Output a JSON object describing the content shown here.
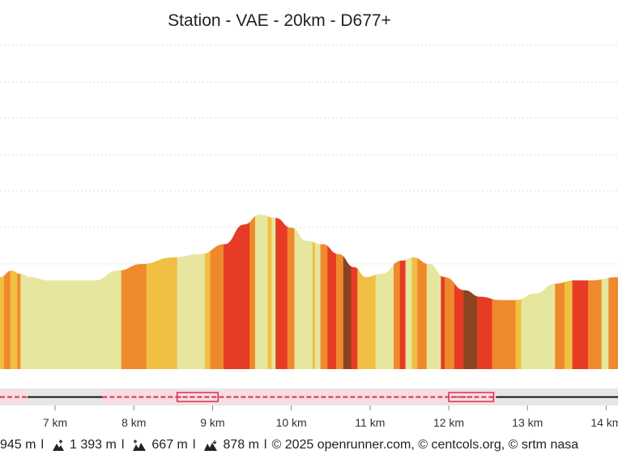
{
  "title": "Station - VAE - 20km - D677+",
  "footer": {
    "distance": "945 m",
    "ascent": "1 393 m",
    "descent_up": "667 m",
    "descent_down": "878 m",
    "credits": "© 2025 openrunner.com, © centcols.org, © srtm nasa"
  },
  "chart_data": {
    "type": "area",
    "title": "Station - VAE - 20km - D677+",
    "xlabel": "",
    "ylabel": "",
    "xlim": [
      6.3,
      14.15
    ],
    "xticks": [
      7,
      8,
      9,
      10,
      11,
      12,
      13,
      14
    ],
    "xtick_labels": [
      "7 km",
      "8 km",
      "9 km",
      "10 km",
      "11 km",
      "12 km",
      "13 km",
      "14 km"
    ],
    "grid": true,
    "profile": [
      [
        6.3,
        0.28
      ],
      [
        6.45,
        0.3
      ],
      [
        6.55,
        0.29
      ],
      [
        6.7,
        0.28
      ],
      [
        6.9,
        0.27
      ],
      [
        7.2,
        0.27
      ],
      [
        7.5,
        0.27
      ],
      [
        7.8,
        0.3
      ],
      [
        8.1,
        0.32
      ],
      [
        8.5,
        0.34
      ],
      [
        8.85,
        0.35
      ],
      [
        9.15,
        0.38
      ],
      [
        9.4,
        0.44
      ],
      [
        9.6,
        0.47
      ],
      [
        9.8,
        0.46
      ],
      [
        10.0,
        0.43
      ],
      [
        10.2,
        0.39
      ],
      [
        10.4,
        0.38
      ],
      [
        10.6,
        0.35
      ],
      [
        10.8,
        0.31
      ],
      [
        10.95,
        0.28
      ],
      [
        11.15,
        0.29
      ],
      [
        11.4,
        0.33
      ],
      [
        11.55,
        0.34
      ],
      [
        11.75,
        0.32
      ],
      [
        11.95,
        0.28
      ],
      [
        12.2,
        0.24
      ],
      [
        12.4,
        0.22
      ],
      [
        12.65,
        0.21
      ],
      [
        12.85,
        0.21
      ],
      [
        13.1,
        0.23
      ],
      [
        13.35,
        0.26
      ],
      [
        13.6,
        0.27
      ],
      [
        13.8,
        0.27
      ],
      [
        14.15,
        0.28
      ]
    ],
    "gradient_colors": [
      "#e6e69e",
      "#f0c042",
      "#ef8a2c",
      "#e63b25",
      "#8b4421"
    ],
    "segments": [
      [
        6.3,
        6.35,
        1
      ],
      [
        6.35,
        6.43,
        2
      ],
      [
        6.43,
        6.52,
        1
      ],
      [
        6.52,
        6.56,
        2
      ],
      [
        6.56,
        6.62,
        0
      ],
      [
        6.62,
        7.84,
        0
      ],
      [
        7.84,
        8.16,
        2
      ],
      [
        8.16,
        8.55,
        1
      ],
      [
        8.55,
        8.9,
        0
      ],
      [
        8.9,
        8.97,
        1
      ],
      [
        8.97,
        9.14,
        2
      ],
      [
        9.14,
        9.47,
        3
      ],
      [
        9.47,
        9.54,
        2
      ],
      [
        9.54,
        9.7,
        0
      ],
      [
        9.7,
        9.75,
        1
      ],
      [
        9.75,
        9.8,
        0
      ],
      [
        9.8,
        9.95,
        3
      ],
      [
        9.95,
        10.04,
        2
      ],
      [
        10.04,
        10.27,
        0
      ],
      [
        10.27,
        10.3,
        1
      ],
      [
        10.3,
        10.37,
        0
      ],
      [
        10.37,
        10.46,
        2
      ],
      [
        10.46,
        10.57,
        3
      ],
      [
        10.57,
        10.66,
        2
      ],
      [
        10.66,
        10.76,
        4
      ],
      [
        10.76,
        10.84,
        3
      ],
      [
        10.84,
        11.07,
        1
      ],
      [
        11.07,
        11.3,
        0
      ],
      [
        11.3,
        11.38,
        2
      ],
      [
        11.38,
        11.45,
        3
      ],
      [
        11.45,
        11.53,
        0
      ],
      [
        11.53,
        11.6,
        1
      ],
      [
        11.6,
        11.72,
        2
      ],
      [
        11.72,
        11.9,
        0
      ],
      [
        11.9,
        11.95,
        3
      ],
      [
        11.95,
        12.07,
        2
      ],
      [
        12.07,
        12.19,
        3
      ],
      [
        12.19,
        12.36,
        4
      ],
      [
        12.36,
        12.55,
        3
      ],
      [
        12.55,
        12.85,
        2
      ],
      [
        12.85,
        12.92,
        1
      ],
      [
        12.92,
        13.35,
        0
      ],
      [
        13.35,
        13.47,
        2
      ],
      [
        13.47,
        13.57,
        1
      ],
      [
        13.57,
        13.77,
        3
      ],
      [
        13.77,
        13.94,
        2
      ],
      [
        13.94,
        14.03,
        0
      ],
      [
        14.03,
        14.15,
        2
      ]
    ],
    "route_bar": {
      "colors": {
        "track": "#111111",
        "road": "#d2344e",
        "band": "#f7dce3"
      },
      "dashed_ranges": [
        [
          6.3,
          6.65
        ],
        [
          7.6,
          12.6
        ]
      ],
      "dotted_ranges": [
        [
          8.55,
          9.07
        ],
        [
          12.0,
          12.57
        ]
      ]
    }
  }
}
